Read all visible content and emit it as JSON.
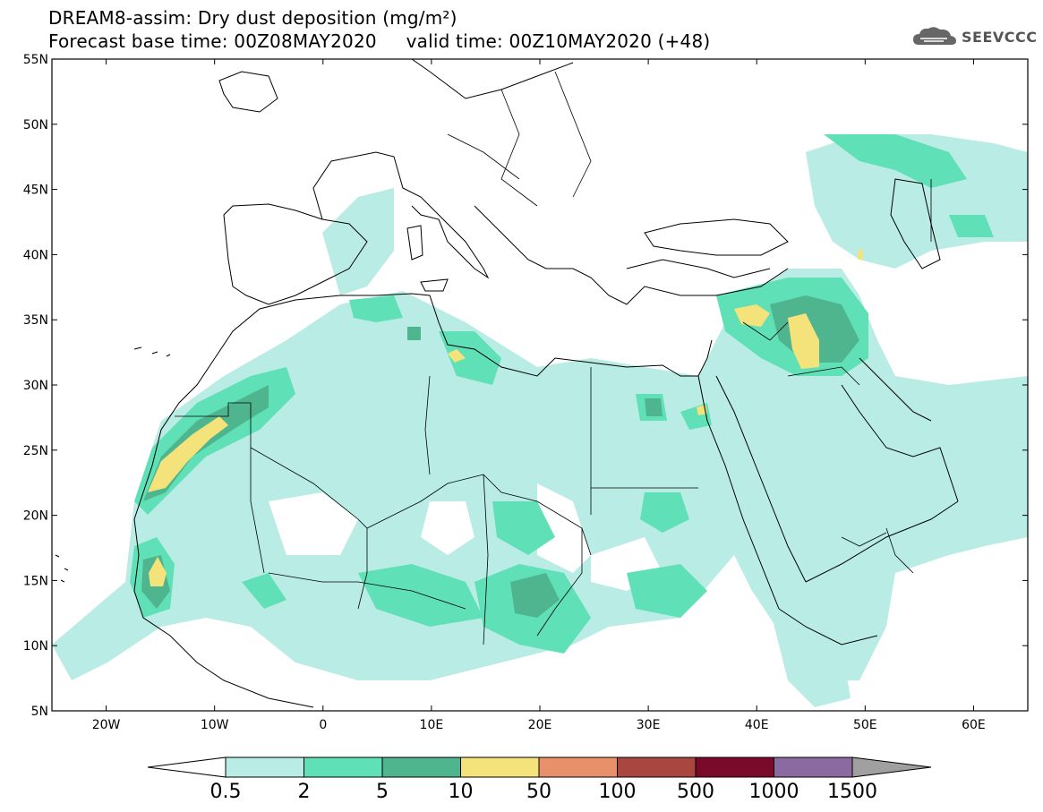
{
  "header": {
    "title_line1": "DREAM8-assim: Dry dust deposition (mg/m²)",
    "title_line2": "Forecast base time: 00Z08MAY2020     valid time: 00Z10MAY2020 (+48)"
  },
  "logo": {
    "text": "SEEVCCC",
    "icon": "cloud-icon"
  },
  "map": {
    "lon_range": [
      -25,
      65
    ],
    "lat_range": [
      5,
      55
    ],
    "lat_ticks": [
      "55N",
      "50N",
      "45N",
      "40N",
      "35N",
      "30N",
      "25N",
      "20N",
      "15N",
      "10N",
      "5N"
    ],
    "lon_ticks": [
      "20W",
      "10W",
      "0",
      "10E",
      "20E",
      "30E",
      "40E",
      "50E",
      "60E"
    ]
  },
  "colorbar": {
    "labels": [
      "0.5",
      "2",
      "5",
      "10",
      "50",
      "100",
      "500",
      "1000",
      "1500"
    ],
    "colors": [
      "#b9ece4",
      "#5fe0b6",
      "#4fb58e",
      "#f4e27a",
      "#e8906a",
      "#a8463f",
      "#7a0a2a",
      "#8a6aa0"
    ],
    "under_color": "#ffffff",
    "over_color": "#a0a0a0"
  }
}
